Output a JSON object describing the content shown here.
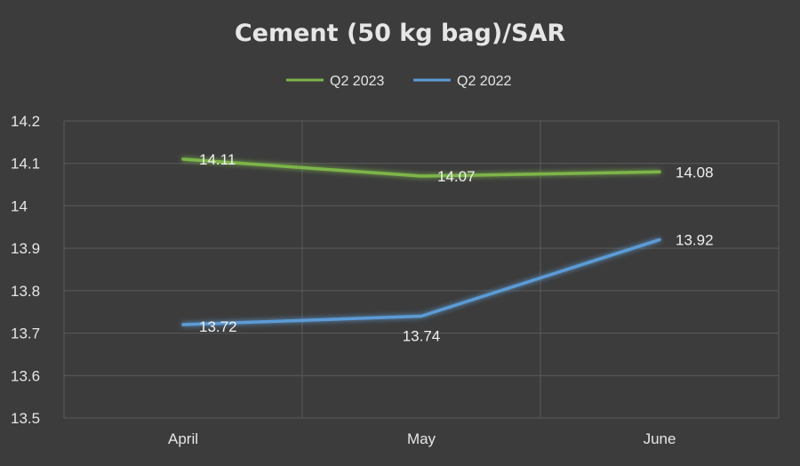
{
  "chart_data": {
    "type": "line",
    "title": "Cement (50 kg bag)/SAR",
    "xlabel": "",
    "ylabel": "",
    "categories": [
      "April",
      "May",
      "June"
    ],
    "series": [
      {
        "name": "Q2 2023",
        "color": "#7db54a",
        "values": [
          14.11,
          14.07,
          14.08
        ]
      },
      {
        "name": "Q2 2022",
        "color": "#5b9bd5",
        "values": [
          13.72,
          13.74,
          13.92
        ]
      }
    ],
    "ylim": [
      13.5,
      14.2
    ],
    "y_ticks": [
      "14.2",
      "14.1",
      "14",
      "13.9",
      "13.8",
      "13.7",
      "13.6",
      "13.5"
    ],
    "grid": true,
    "legend": "top-center",
    "data_labels": true
  }
}
